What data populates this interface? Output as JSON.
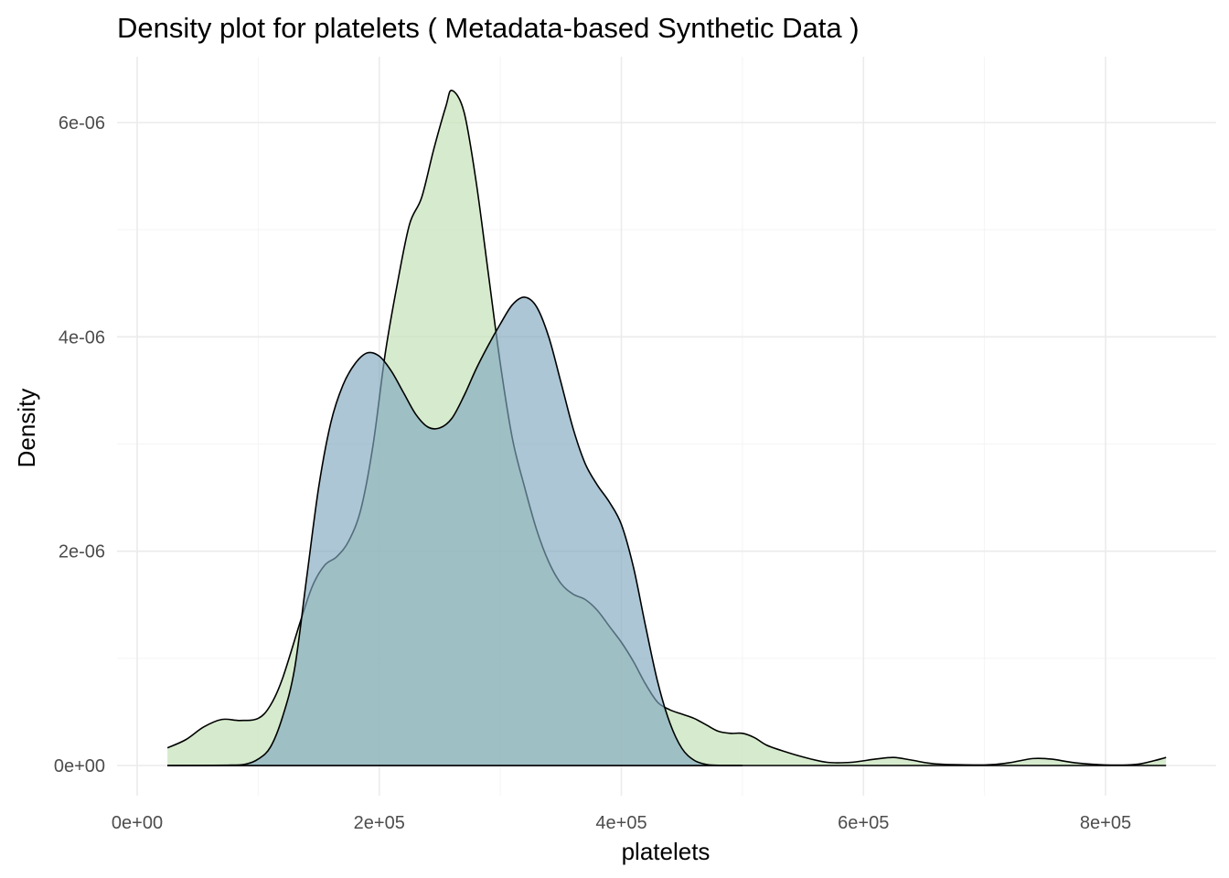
{
  "chart_data": {
    "type": "area",
    "title": "Density plot for platelets ( Metadata-based Synthetic Data )",
    "xlabel": "platelets",
    "ylabel": "Density",
    "xlim": [
      0,
      880000
    ],
    "ylim": [
      0,
      6.4e-06
    ],
    "x_ticks": [
      0,
      200000,
      400000,
      600000,
      800000
    ],
    "x_tick_labels": [
      "0e+00",
      "2e+05",
      "4e+05",
      "6e+05",
      "8e+05"
    ],
    "y_ticks": [
      0,
      2e-06,
      4e-06,
      6e-06
    ],
    "y_tick_labels": [
      "0e+00",
      "2e-06",
      "4e-06",
      "6e-06"
    ],
    "grid": true,
    "legend": "none",
    "series": [
      {
        "fill": "#c5e3b8",
        "fill_opacity": 0.7,
        "points": [
          [
            25000,
            1.65e-07
          ],
          [
            40000,
            2.4e-07
          ],
          [
            55000,
            3.6e-07
          ],
          [
            70000,
            4.3e-07
          ],
          [
            85000,
            4.2e-07
          ],
          [
            100000,
            4.4e-07
          ],
          [
            110000,
            5.6e-07
          ],
          [
            120000,
            8.1e-07
          ],
          [
            135000,
            1.35e-06
          ],
          [
            145000,
            1.68e-06
          ],
          [
            155000,
            1.87e-06
          ],
          [
            165000,
            1.95e-06
          ],
          [
            175000,
            2.1e-06
          ],
          [
            185000,
            2.4e-06
          ],
          [
            195000,
            3e-06
          ],
          [
            205000,
            3.85e-06
          ],
          [
            215000,
            4.5e-06
          ],
          [
            225000,
            5.05e-06
          ],
          [
            235000,
            5.3e-06
          ],
          [
            245000,
            5.75e-06
          ],
          [
            255000,
            6.15e-06
          ],
          [
            260000,
            6.3e-06
          ],
          [
            270000,
            6.1e-06
          ],
          [
            280000,
            5.45e-06
          ],
          [
            290000,
            4.6e-06
          ],
          [
            300000,
            3.75e-06
          ],
          [
            310000,
            3.05e-06
          ],
          [
            320000,
            2.6e-06
          ],
          [
            330000,
            2.2e-06
          ],
          [
            340000,
            1.9e-06
          ],
          [
            350000,
            1.7e-06
          ],
          [
            360000,
            1.6e-06
          ],
          [
            370000,
            1.55e-06
          ],
          [
            380000,
            1.45e-06
          ],
          [
            390000,
            1.3e-06
          ],
          [
            400000,
            1.15e-06
          ],
          [
            410000,
            9.7e-07
          ],
          [
            420000,
            7.6e-07
          ],
          [
            430000,
            5.9e-07
          ],
          [
            440000,
            5.2e-07
          ],
          [
            450000,
            4.8e-07
          ],
          [
            460000,
            4.4e-07
          ],
          [
            470000,
            3.8e-07
          ],
          [
            480000,
            3.2e-07
          ],
          [
            490000,
            3e-07
          ],
          [
            500000,
            3e-07
          ],
          [
            510000,
            2.6e-07
          ],
          [
            520000,
            1.9e-07
          ],
          [
            535000,
            1.3e-07
          ],
          [
            550000,
            8e-08
          ],
          [
            570000,
            3e-08
          ],
          [
            590000,
            3e-08
          ],
          [
            610000,
            6e-08
          ],
          [
            625000,
            7.5e-08
          ],
          [
            640000,
            5e-08
          ],
          [
            660000,
            1.5e-08
          ],
          [
            700000,
            5e-09
          ],
          [
            720000,
            2.5e-08
          ],
          [
            740000,
            6.5e-08
          ],
          [
            755000,
            6e-08
          ],
          [
            775000,
            2.5e-08
          ],
          [
            800000,
            5e-09
          ],
          [
            825000,
            1e-08
          ],
          [
            840000,
            4.5e-08
          ],
          [
            850000,
            7.5e-08
          ]
        ]
      },
      {
        "fill": "#7fa7be",
        "fill_opacity": 0.65,
        "points": [
          [
            25000,
            0
          ],
          [
            75000,
            3e-09
          ],
          [
            90000,
            1.4e-08
          ],
          [
            100000,
            6e-08
          ],
          [
            110000,
            1.7e-07
          ],
          [
            120000,
            4.5e-07
          ],
          [
            130000,
            9e-07
          ],
          [
            140000,
            1.75e-06
          ],
          [
            150000,
            2.6e-06
          ],
          [
            160000,
            3.2e-06
          ],
          [
            170000,
            3.55e-06
          ],
          [
            180000,
            3.75e-06
          ],
          [
            190000,
            3.85e-06
          ],
          [
            200000,
            3.82e-06
          ],
          [
            210000,
            3.68e-06
          ],
          [
            220000,
            3.48e-06
          ],
          [
            230000,
            3.28e-06
          ],
          [
            240000,
            3.16e-06
          ],
          [
            250000,
            3.15e-06
          ],
          [
            260000,
            3.24e-06
          ],
          [
            270000,
            3.45e-06
          ],
          [
            280000,
            3.7e-06
          ],
          [
            290000,
            3.92e-06
          ],
          [
            300000,
            4.12e-06
          ],
          [
            310000,
            4.3e-06
          ],
          [
            320000,
            4.37e-06
          ],
          [
            330000,
            4.28e-06
          ],
          [
            340000,
            4e-06
          ],
          [
            350000,
            3.58e-06
          ],
          [
            360000,
            3.15e-06
          ],
          [
            370000,
            2.82e-06
          ],
          [
            380000,
            2.62e-06
          ],
          [
            390000,
            2.46e-06
          ],
          [
            400000,
            2.25e-06
          ],
          [
            410000,
            1.85e-06
          ],
          [
            420000,
            1.3e-06
          ],
          [
            430000,
            7.8e-07
          ],
          [
            440000,
            4e-07
          ],
          [
            450000,
            1.6e-07
          ],
          [
            460000,
            5e-08
          ],
          [
            470000,
            1e-08
          ],
          [
            480000,
            2e-09
          ],
          [
            500000,
            0
          ]
        ]
      }
    ]
  }
}
